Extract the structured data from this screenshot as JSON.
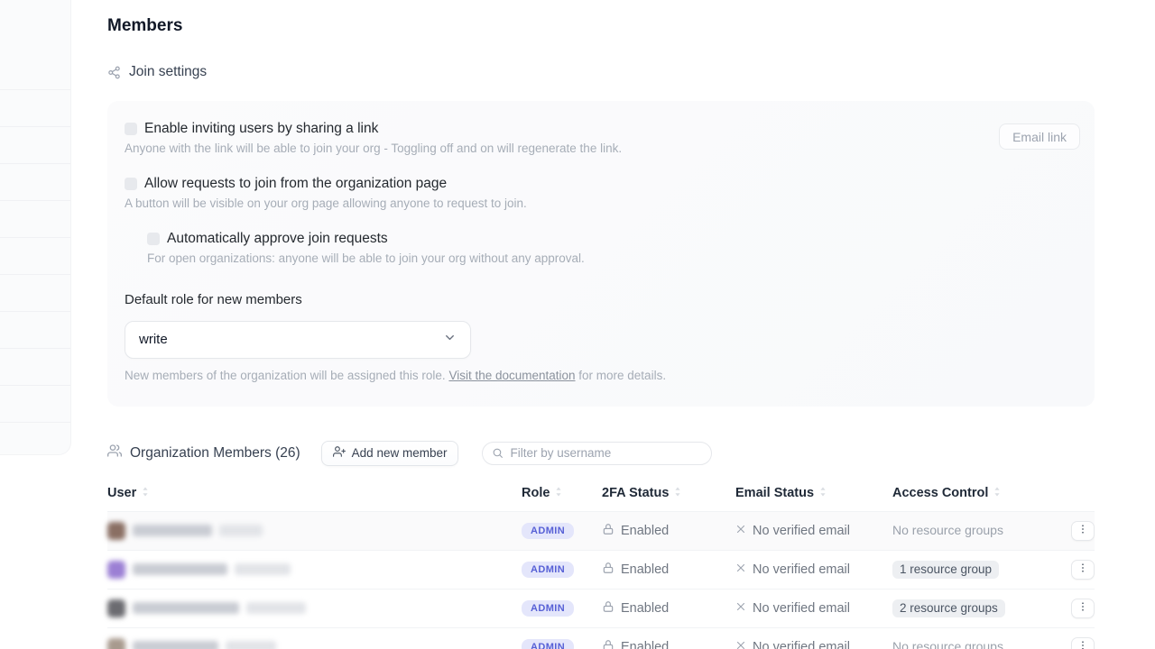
{
  "page": {
    "title": "Members"
  },
  "join_settings": {
    "section_title": "Join settings",
    "email_link_button": "Email link",
    "options": [
      {
        "label": "Enable inviting users by sharing a link",
        "description": "Anyone with the link will be able to join your org - Toggling off and on will regenerate the link.",
        "checked": false
      },
      {
        "label": "Allow requests to join from the organization page",
        "description": "A button will be visible on your org page allowing anyone to request to join.",
        "checked": false
      },
      {
        "label": "Automatically approve join requests",
        "description": "For open organizations: anyone will be able to join your org without any approval.",
        "checked": false
      }
    ],
    "default_role": {
      "label": "Default role for new members",
      "value": "write",
      "help_prefix": "New members of the organization will be assigned this role. ",
      "help_link": "Visit the documentation",
      "help_suffix": " for more details."
    }
  },
  "members_section": {
    "title": "Organization Members (26)",
    "add_button": "Add new member",
    "filter_placeholder": "Filter by username"
  },
  "table": {
    "headers": [
      "User",
      "Role",
      "2FA Status",
      "Email Status",
      "Access Control"
    ],
    "rows": [
      {
        "user_redacted": true,
        "avatar_color": "#8a6f63",
        "name_bar_widths": [
          88,
          48
        ],
        "role": "ADMIN",
        "twofa_status": "Enabled",
        "email_status": "No verified email",
        "access_control": "No resource groups",
        "access_is_badge": false,
        "tinted": true
      },
      {
        "user_redacted": true,
        "avatar_color": "#9b7fd4",
        "name_bar_widths": [
          105,
          62
        ],
        "role": "ADMIN",
        "twofa_status": "Enabled",
        "email_status": "No verified email",
        "access_control": "1 resource group",
        "access_is_badge": true,
        "tinted": false
      },
      {
        "user_redacted": true,
        "avatar_color": "#6b6b70",
        "name_bar_widths": [
          118,
          66
        ],
        "role": "ADMIN",
        "twofa_status": "Enabled",
        "email_status": "No verified email",
        "access_control": "2 resource groups",
        "access_is_badge": true,
        "tinted": false
      },
      {
        "user_redacted": true,
        "avatar_color": "#a89a8e",
        "name_bar_widths": [
          95,
          56
        ],
        "role": "ADMIN",
        "twofa_status": "Enabled",
        "email_status": "No verified email",
        "access_control": "No resource groups",
        "access_is_badge": false,
        "tinted": false
      }
    ]
  },
  "icons": {
    "join_settings": "share-network-icon",
    "members": "users-icon",
    "add_member": "person-plus-icon",
    "filter": "search-icon",
    "select": "chevron-down-icon",
    "twofa": "lock-icon",
    "email_status": "x-icon",
    "row_actions": "kebab-icon",
    "sort": "sort-arrows-icon"
  },
  "colors": {
    "admin_badge_bg": "#e4e6fb",
    "admin_badge_text": "#5760d6",
    "card_bg": "#f9fafb",
    "muted_text": "#a6adb7",
    "status_text": "#6f7681"
  }
}
